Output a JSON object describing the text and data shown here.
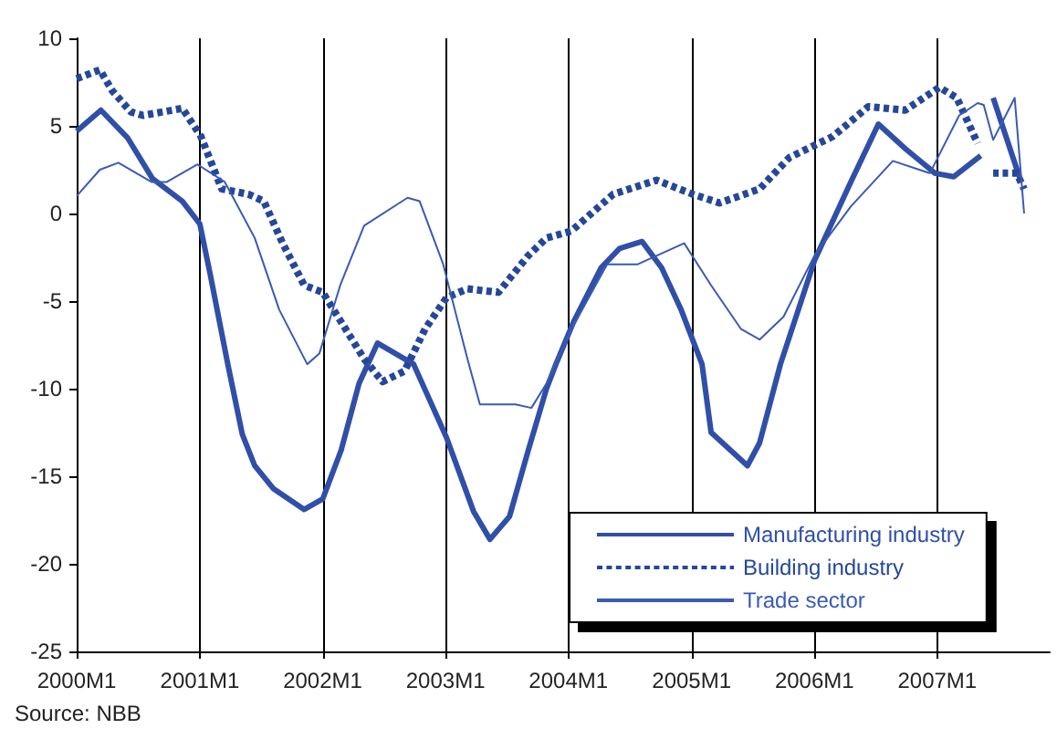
{
  "chart_data": {
    "type": "line",
    "annotations": [
      "Source: NBB"
    ],
    "xlim": [
      "2000-01",
      "2007-12"
    ],
    "xticks": [
      {
        "value": "2000-01",
        "label": "2000M1"
      },
      {
        "value": "2001-01",
        "label": "2001M1"
      },
      {
        "value": "2002-01",
        "label": "2002M1"
      },
      {
        "value": "2003-01",
        "label": "2003M1"
      },
      {
        "value": "2004-01",
        "label": "2004M1"
      },
      {
        "value": "2005-01",
        "label": "2005M1"
      },
      {
        "value": "2006-01",
        "label": "2006M1"
      },
      {
        "value": "2007-01",
        "label": "2007M1"
      }
    ],
    "ylim": [
      -25,
      10
    ],
    "yticks": [
      -25,
      -20,
      -15,
      -10,
      -5,
      0,
      5,
      10
    ],
    "grid": "x",
    "legend": "bottom right",
    "marker": "none",
    "series": [
      {
        "name": "Manufacturing industry",
        "color": "#2f4fa8",
        "line_style": "solid",
        "x": [
          "2000-01-01",
          "2000-03-13",
          "2000-06-01",
          "2000-08-13",
          "2000-11-10",
          "2001-01-01",
          "2001-02-01",
          "2001-03-25",
          "2001-05-07",
          "2001-06-13",
          "2001-08-07",
          "2001-11-07",
          "2002-01-01",
          "2002-02-25",
          "2002-04-19",
          "2002-06-13",
          "2002-09-28",
          "2003-01-04",
          "2003-03-25",
          "2003-05-13",
          "2003-07-10",
          "2003-09-04",
          "2003-10-28",
          "2003-11-25",
          "2004-01-16",
          "2004-04-07",
          "2004-06-01",
          "2004-08-07",
          "2004-10-04",
          "2004-12-01",
          "2005-02-01",
          "2005-02-28",
          "2005-06-16",
          "2005-07-22",
          "2005-09-22",
          "2006-01-01",
          "2006-04-19",
          "2006-07-10",
          "2006-09-28",
          "2006-12-25",
          "2007-02-19",
          "2007-05-10",
          "2007-06-01",
          "2007-06-16",
          "2007-09-07"
        ],
        "values": [
          4.7,
          5.9,
          4.3,
          2.0,
          0.7,
          -0.6,
          -3.5,
          -8.6,
          -12.6,
          -14.4,
          -15.7,
          -16.9,
          -16.3,
          -13.5,
          -9.7,
          -7.4,
          -8.6,
          -12.8,
          -17.0,
          -18.6,
          -17.3,
          -13.5,
          -10.0,
          -8.6,
          -6.2,
          -3.1,
          -2.0,
          -1.6,
          -3.1,
          -5.5,
          -8.6,
          -12.5,
          -14.4,
          -13.1,
          -8.6,
          -2.7,
          1.8,
          5.1,
          3.7,
          2.3,
          2.1,
          3.3,
          null,
          6.6,
          1.8
        ]
      },
      {
        "name": "Building industry",
        "color": "#25479a",
        "line_style": "dashed",
        "x": [
          "2000-01-01",
          "2000-03-10",
          "2000-04-16",
          "2000-06-10",
          "2000-07-16",
          "2000-11-10",
          "2001-01-04",
          "2001-03-07",
          "2001-05-25",
          "2001-07-10",
          "2001-09-04",
          "2001-11-07",
          "2002-01-01",
          "2002-03-10",
          "2002-05-04",
          "2002-06-28",
          "2002-09-01",
          "2002-11-01",
          "2003-01-04",
          "2003-03-07",
          "2003-06-07",
          "2003-09-04",
          "2003-10-28",
          "2004-01-10",
          "2004-05-13",
          "2004-09-19",
          "2005-01-04",
          "2005-03-25",
          "2005-07-22",
          "2005-10-19",
          "2006-02-25",
          "2006-06-10",
          "2006-09-28",
          "2007-01-07",
          "2007-02-28",
          "2007-05-01",
          "2007-06-01",
          "2007-06-16",
          "2007-08-25",
          "2007-09-16"
        ],
        "values": [
          7.7,
          8.2,
          7.0,
          5.8,
          5.6,
          6.0,
          4.4,
          1.4,
          1.1,
          0.7,
          -1.7,
          -4.1,
          -4.5,
          -6.6,
          -8.3,
          -9.6,
          -9.0,
          -6.6,
          -4.8,
          -4.3,
          -4.5,
          -2.4,
          -1.4,
          -1.0,
          1.1,
          1.9,
          1.1,
          0.6,
          1.4,
          3.2,
          4.4,
          6.1,
          5.9,
          7.2,
          6.6,
          4.0,
          null,
          2.3,
          2.3,
          1.4
        ]
      },
      {
        "name": "Trade sector",
        "color": "#3a5ab4",
        "line_style": "solid",
        "x": [
          "2000-01-01",
          "2000-03-10",
          "2000-05-04",
          "2000-08-10",
          "2000-09-25",
          "2000-12-25",
          "2001-03-16",
          "2001-06-13",
          "2001-08-25",
          "2001-11-16",
          "2001-12-22",
          "2002-02-22",
          "2002-05-04",
          "2002-09-10",
          "2002-10-16",
          "2002-12-25",
          "2003-03-07",
          "2003-04-13",
          "2003-07-28",
          "2003-09-13",
          "2003-10-28",
          "2004-01-10",
          "2004-04-25",
          "2004-07-25",
          "2004-12-10",
          "2005-02-28",
          "2005-05-28",
          "2005-07-22",
          "2005-10-01",
          "2006-01-01",
          "2006-04-19",
          "2006-08-22",
          "2006-12-10",
          "2007-03-07",
          "2007-05-01",
          "2007-05-19",
          "2007-06-16",
          "2007-08-19",
          "2007-09-16"
        ],
        "values": [
          1.0,
          2.5,
          2.9,
          1.8,
          1.8,
          2.8,
          1.8,
          -1.4,
          -5.5,
          -8.6,
          -8.0,
          -4.1,
          -0.7,
          0.9,
          0.7,
          -2.9,
          -8.3,
          -10.9,
          -10.9,
          -11.1,
          -9.7,
          -6.6,
          -2.9,
          -2.9,
          -1.7,
          -4.1,
          -6.6,
          -7.2,
          -5.9,
          -2.4,
          0.4,
          3.0,
          2.3,
          5.6,
          6.3,
          6.2,
          4.2,
          6.6,
          0.0
        ]
      }
    ]
  }
}
